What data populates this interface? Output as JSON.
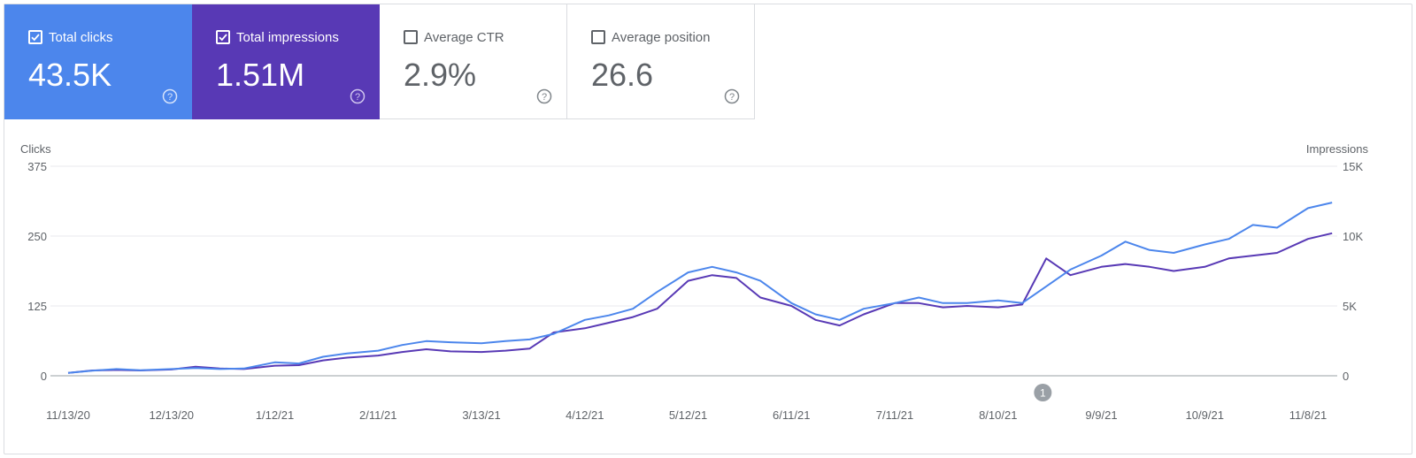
{
  "metrics": [
    {
      "label": "Total clicks",
      "value": "43.5K",
      "checked": true,
      "color": "#4c86ec"
    },
    {
      "label": "Total impressions",
      "value": "1.51M",
      "checked": true,
      "color": "#5839b5"
    },
    {
      "label": "Average CTR",
      "value": "2.9%",
      "checked": false
    },
    {
      "label": "Average position",
      "value": "26.6",
      "checked": false
    }
  ],
  "chart_data": {
    "type": "line",
    "left_axis": {
      "label": "Clicks",
      "ticks": [
        "0",
        "125",
        "250",
        "375"
      ],
      "range": [
        0,
        375
      ]
    },
    "right_axis": {
      "label": "Impressions",
      "ticks": [
        "0",
        "5K",
        "10K",
        "15K"
      ],
      "range": [
        0,
        15000
      ]
    },
    "x_labels": [
      "11/13/20",
      "12/13/20",
      "1/12/21",
      "2/11/21",
      "3/13/21",
      "4/12/21",
      "5/12/21",
      "6/11/21",
      "7/11/21",
      "8/10/21",
      "9/9/21",
      "10/9/21",
      "11/8/21"
    ],
    "annotation": {
      "label": "1",
      "date": "8/23/21"
    },
    "grid": true,
    "series": [
      {
        "name": "Clicks",
        "axis": "left",
        "color": "#4c86ec",
        "points": [
          [
            "11/13/20",
            5
          ],
          [
            "11/20/20",
            9
          ],
          [
            "11/27/20",
            12
          ],
          [
            "12/4/20",
            10
          ],
          [
            "12/13/20",
            12
          ],
          [
            "12/20/20",
            14
          ],
          [
            "12/27/20",
            12
          ],
          [
            "1/3/21",
            13
          ],
          [
            "1/12/21",
            24
          ],
          [
            "1/19/21",
            22
          ],
          [
            "1/26/21",
            34
          ],
          [
            "2/2/21",
            40
          ],
          [
            "2/11/21",
            45
          ],
          [
            "2/18/21",
            55
          ],
          [
            "2/25/21",
            62
          ],
          [
            "3/4/21",
            60
          ],
          [
            "3/13/21",
            58
          ],
          [
            "3/20/21",
            62
          ],
          [
            "3/27/21",
            65
          ],
          [
            "4/3/21",
            75
          ],
          [
            "4/12/21",
            100
          ],
          [
            "4/19/21",
            108
          ],
          [
            "4/26/21",
            120
          ],
          [
            "5/3/21",
            150
          ],
          [
            "5/12/21",
            185
          ],
          [
            "5/19/21",
            195
          ],
          [
            "5/26/21",
            185
          ],
          [
            "6/2/21",
            170
          ],
          [
            "6/11/21",
            130
          ],
          [
            "6/18/21",
            110
          ],
          [
            "6/25/21",
            100
          ],
          [
            "7/2/21",
            120
          ],
          [
            "7/11/21",
            130
          ],
          [
            "7/18/21",
            140
          ],
          [
            "7/25/21",
            130
          ],
          [
            "8/1/21",
            130
          ],
          [
            "8/10/21",
            135
          ],
          [
            "8/17/21",
            130
          ],
          [
            "8/24/21",
            160
          ],
          [
            "8/31/21",
            190
          ],
          [
            "9/9/21",
            215
          ],
          [
            "9/16/21",
            240
          ],
          [
            "9/23/21",
            225
          ],
          [
            "9/30/21",
            220
          ],
          [
            "10/9/21",
            235
          ],
          [
            "10/16/21",
            245
          ],
          [
            "10/23/21",
            270
          ],
          [
            "10/30/21",
            265
          ],
          [
            "11/8/21",
            300
          ],
          [
            "11/15/21",
            310
          ]
        ]
      },
      {
        "name": "Impressions",
        "axis": "right",
        "color": "#5839b5",
        "points": [
          [
            "11/13/20",
            200
          ],
          [
            "11/20/20",
            380
          ],
          [
            "11/27/20",
            420
          ],
          [
            "12/4/20",
            380
          ],
          [
            "12/13/20",
            450
          ],
          [
            "12/20/20",
            650
          ],
          [
            "12/27/20",
            520
          ],
          [
            "1/3/21",
            480
          ],
          [
            "1/12/21",
            720
          ],
          [
            "1/19/21",
            760
          ],
          [
            "1/26/21",
            1100
          ],
          [
            "2/2/21",
            1300
          ],
          [
            "2/11/21",
            1450
          ],
          [
            "2/18/21",
            1700
          ],
          [
            "2/25/21",
            1900
          ],
          [
            "3/4/21",
            1750
          ],
          [
            "3/13/21",
            1700
          ],
          [
            "3/20/21",
            1800
          ],
          [
            "3/27/21",
            1950
          ],
          [
            "4/3/21",
            3100
          ],
          [
            "4/12/21",
            3400
          ],
          [
            "4/19/21",
            3800
          ],
          [
            "4/26/21",
            4200
          ],
          [
            "5/3/21",
            4800
          ],
          [
            "5/12/21",
            6800
          ],
          [
            "5/19/21",
            7200
          ],
          [
            "5/26/21",
            7000
          ],
          [
            "6/2/21",
            5600
          ],
          [
            "6/11/21",
            5000
          ],
          [
            "6/18/21",
            4000
          ],
          [
            "6/25/21",
            3600
          ],
          [
            "7/2/21",
            4400
          ],
          [
            "7/11/21",
            5200
          ],
          [
            "7/18/21",
            5200
          ],
          [
            "7/25/21",
            4900
          ],
          [
            "8/1/21",
            5000
          ],
          [
            "8/10/21",
            4900
          ],
          [
            "8/17/21",
            5100
          ],
          [
            "8/24/21",
            8400
          ],
          [
            "8/31/21",
            7200
          ],
          [
            "9/9/21",
            7800
          ],
          [
            "9/16/21",
            8000
          ],
          [
            "9/23/21",
            7800
          ],
          [
            "9/30/21",
            7500
          ],
          [
            "10/9/21",
            7800
          ],
          [
            "10/16/21",
            8400
          ],
          [
            "10/23/21",
            8600
          ],
          [
            "10/30/21",
            8800
          ],
          [
            "11/8/21",
            9800
          ],
          [
            "11/15/21",
            10200
          ]
        ]
      }
    ]
  }
}
